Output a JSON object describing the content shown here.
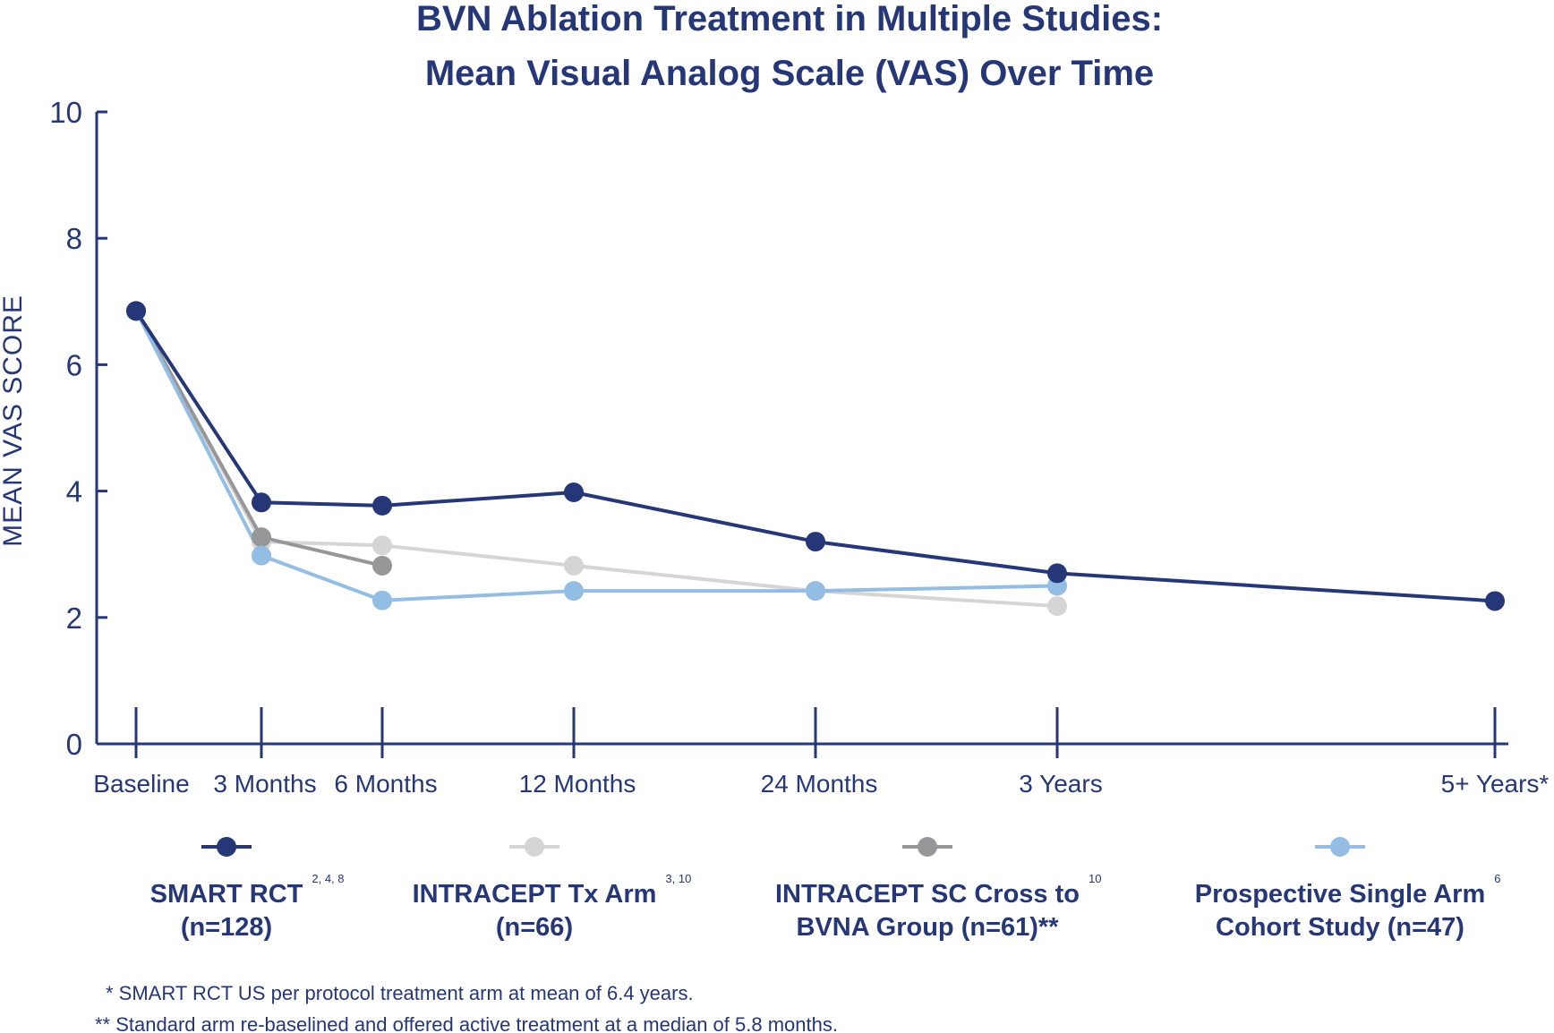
{
  "chart_data": {
    "type": "line",
    "title": [
      "BVN Ablation Treatment in Multiple Studies:",
      "Mean Visual Analog Scale (VAS) Over Time"
    ],
    "ylabel": "MEAN VAS SCORE",
    "xlabel": "",
    "ylim": [
      0,
      10
    ],
    "yticks": [
      0,
      2,
      4,
      6,
      8,
      10
    ],
    "categories": [
      "Baseline",
      "3 Months",
      "6 Months",
      "12 Months",
      "24 Months",
      "3 Years",
      "5+ Years*"
    ],
    "x_months": [
      0,
      3,
      6,
      12,
      24,
      36,
      70
    ],
    "colors": {
      "axis": "#253776",
      "text": "#253776"
    },
    "series": [
      {
        "name": "SMART RCT (n=128)",
        "label_lines": [
          "SMART RCT",
          "(n=128)"
        ],
        "superscript": "2, 4, 8",
        "color": "#253776",
        "values": [
          6.85,
          3.82,
          3.77,
          3.98,
          3.2,
          2.7,
          2.26
        ]
      },
      {
        "name": "INTRACEPT Tx Arm (n=66)",
        "label_lines": [
          "INTRACEPT Tx Arm",
          "(n=66)"
        ],
        "superscript": "3, 10",
        "color": "#d5d5d5",
        "values": [
          6.85,
          3.2,
          3.14,
          2.82,
          2.42,
          2.18,
          null
        ]
      },
      {
        "name": "INTRACEPT SC Cross to BVNA Group (n=61)**",
        "label_lines": [
          "INTRACEPT SC Cross to",
          "BVNA Group (n=61)**"
        ],
        "superscript": "10",
        "color": "#97979a",
        "values": [
          6.85,
          3.27,
          2.82,
          null,
          null,
          null,
          null
        ]
      },
      {
        "name": "Prospective Single Arm Cohort Study (n=47)",
        "label_lines": [
          "Prospective Single Arm",
          "Cohort Study (n=47)"
        ],
        "superscript": "6",
        "color": "#93bde3",
        "values": [
          6.85,
          2.98,
          2.27,
          2.42,
          2.42,
          2.5,
          null
        ]
      }
    ],
    "legend_position": "bottom",
    "footnotes": [
      "* SMART RCT US per protocol treatment arm at mean of 6.4 years.",
      "** Standard arm re-baselined and offered active treatment at a median of 5.8 months."
    ]
  }
}
